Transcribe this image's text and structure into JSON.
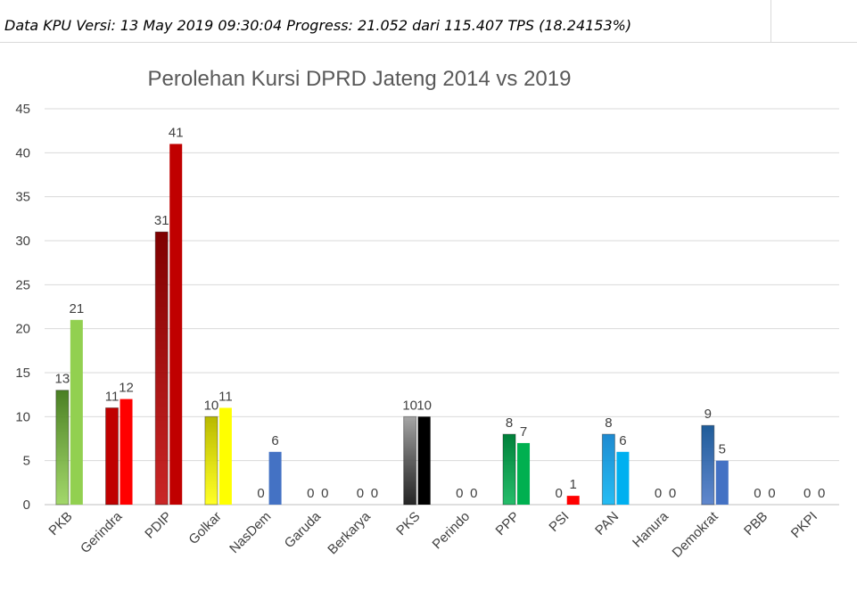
{
  "header": {
    "text": "Data KPU Versi: 13 May 2019 09:30:04 Progress: 21.052 dari 115.407 TPS (18.24153%)"
  },
  "chart_data": {
    "type": "bar",
    "title": "Perolehan Kursi DPRD Jateng 2014 vs 2019",
    "xlabel": "",
    "ylabel": "",
    "ylim": [
      0,
      45
    ],
    "yticks": [
      0,
      5,
      10,
      15,
      20,
      25,
      30,
      35,
      40,
      45
    ],
    "grid": true,
    "legend": "none",
    "categories": [
      "PKB",
      "Gerindra",
      "PDIP",
      "Golkar",
      "NasDem",
      "Garuda",
      "Berkarya",
      "PKS",
      "Perindo",
      "PPP",
      "PSI",
      "PAN",
      "Hanura",
      "Demokrat",
      "PBB",
      "PKPI"
    ],
    "series": [
      {
        "values": [
          13,
          11,
          31,
          10,
          0,
          0,
          0,
          10,
          0,
          8,
          0,
          8,
          0,
          9,
          0,
          0
        ]
      },
      {
        "values": [
          21,
          12,
          41,
          11,
          6,
          0,
          0,
          10,
          0,
          7,
          1,
          6,
          0,
          5,
          0,
          0
        ]
      }
    ],
    "colors_2014": [
      "#4a7f24",
      "#c00000",
      "#7f0000",
      "#b8b800",
      "#4472c4",
      "#808080",
      "#808080",
      "#a6a6a6",
      "#808080",
      "#00803a",
      "#c00000",
      "#1f8ad0",
      "#808080",
      "#1f5c99",
      "#808080",
      "#808080"
    ],
    "colors_2019": [
      "#92d050",
      "#ff0000",
      "#c00000",
      "#ffff00",
      "#4472c4",
      "#808080",
      "#808080",
      "#000000",
      "#808080",
      "#00b050",
      "#ff0000",
      "#00b0f0",
      "#808080",
      "#4472c4",
      "#808080",
      "#808080"
    ],
    "gradient_2014": [
      true,
      false,
      true,
      true,
      false,
      false,
      false,
      true,
      false,
      true,
      false,
      true,
      false,
      true,
      false,
      false
    ]
  }
}
